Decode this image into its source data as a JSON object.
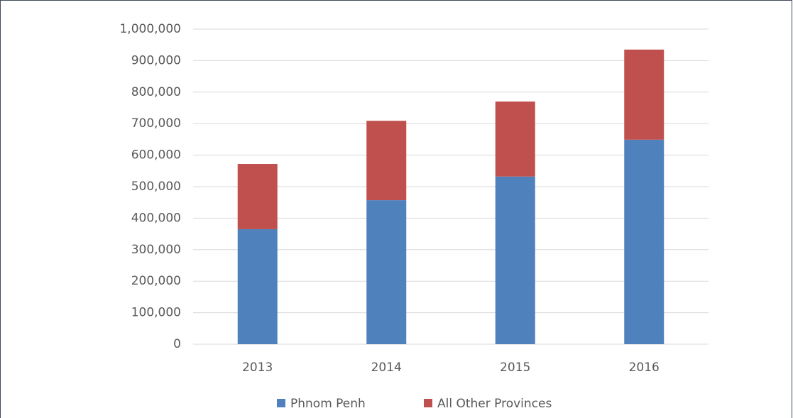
{
  "chart_data": {
    "type": "stacked_bar",
    "categories": [
      "2013",
      "2014",
      "2015",
      "2016"
    ],
    "series": [
      {
        "name": "Phnom Penh",
        "color": "#4f81bd",
        "values": [
          365000,
          457000,
          532000,
          649000
        ]
      },
      {
        "name": "All Other Provinces",
        "color": "#c0504d",
        "values": [
          207000,
          252000,
          238000,
          286000
        ]
      }
    ],
    "ylim": [
      0,
      1000000
    ],
    "yticks": [
      0,
      {
        "value": 100000,
        "label": "100,000"
      },
      {
        "value": 200000,
        "label": "200,000"
      },
      {
        "value": 300000,
        "label": "300,000"
      },
      {
        "value": 400000,
        "label": "400,000"
      },
      {
        "value": 500000,
        "label": "500,000"
      },
      {
        "value": 600000,
        "label": "600,000"
      },
      {
        "value": 700000,
        "label": "700,000"
      },
      {
        "value": 800000,
        "label": "800,000"
      },
      {
        "value": 900000,
        "label": "900,000"
      },
      {
        "value": 1000000,
        "label": "1,000,000"
      }
    ],
    "grid": true,
    "legend": "bottom"
  }
}
